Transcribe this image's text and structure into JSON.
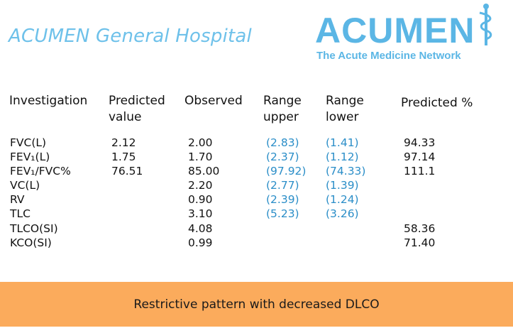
{
  "title": "ACUMEN General Hospital",
  "logo": {
    "word": "ACUMEN",
    "tagline": "The Acute Medicine Network",
    "icon": "caduceus-icon",
    "color": "#5bb6e5"
  },
  "table": {
    "headers": {
      "investigation": "Investigation",
      "predicted_line1": "Predicted",
      "predicted_line2": "value",
      "observed": "Observed",
      "upper_line1": "Range",
      "upper_line2": "upper",
      "lower_line1": "Range",
      "lower_line2": "lower",
      "pct": "Predicted %"
    },
    "rows": [
      {
        "name": "FVC(L)",
        "predicted": "2.12",
        "observed": "2.00",
        "upper": "(2.83)",
        "lower": "(1.41)",
        "pct": "94.33"
      },
      {
        "name": "FEV₁(L)",
        "predicted": "1.75",
        "observed": "1.70",
        "upper": "(2.37)",
        "lower": "(1.12)",
        "pct": "97.14"
      },
      {
        "name": "FEV₁/FVC%",
        "predicted": "76.51",
        "observed": "85.00",
        "upper": "(97.92)",
        "lower": "(74.33)",
        "pct": "111.1"
      },
      {
        "name": "VC(L)",
        "predicted": "",
        "observed": "2.20",
        "upper": "(2.77)",
        "lower": "(1.39)",
        "pct": ""
      },
      {
        "name": "RV",
        "predicted": "",
        "observed": "0.90",
        "upper": "(2.39)",
        "lower": "(1.24)",
        "pct": ""
      },
      {
        "name": "TLC",
        "predicted": "",
        "observed": "3.10",
        "upper": "(5.23)",
        "lower": "(3.26)",
        "pct": ""
      },
      {
        "name": "TLCO(SI)",
        "predicted": "",
        "observed": "4.08",
        "upper": "",
        "lower": "",
        "pct": "58.36"
      },
      {
        "name": "KCO(SI)",
        "predicted": "",
        "observed": "0.99",
        "upper": "",
        "lower": "",
        "pct": "71.40"
      }
    ]
  },
  "footer": {
    "text": "Restrictive pattern with decreased DLCO",
    "color": "#fbab5c"
  },
  "colors": {
    "title": "#6ec1ea",
    "range": "#2b8ec8"
  }
}
